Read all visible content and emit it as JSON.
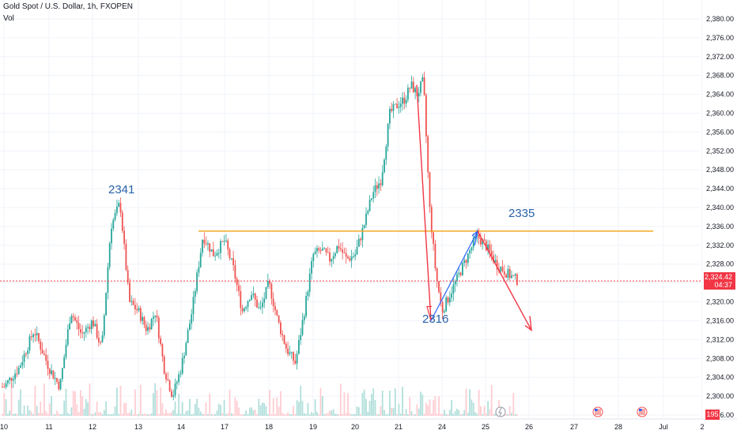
{
  "header": {
    "symbol_title": "Gold Spot / U.S. Dollar, 1h, FXOPEN",
    "volume_label": "Vol"
  },
  "price_tag": {
    "price": "2,324.42",
    "countdown": "04:37"
  },
  "volume_tag": "195",
  "annotations": {
    "high_label": "2341",
    "resistance_label": "2335",
    "low_label": "2316"
  },
  "colors": {
    "up": "#26a69a",
    "down": "#ef5350",
    "resistance": "#f5a623",
    "projection": "#f23645",
    "wave": "#2962ff",
    "annotation_text": "#2962a8"
  },
  "event_icons": [
    "flash-icon",
    "us-flag-icon",
    "us-flag-icon"
  ],
  "chart_data": {
    "type": "candlestick",
    "title": "Gold Spot / U.S. Dollar, 1h, FXOPEN",
    "ylim": [
      2296,
      2382
    ],
    "y_ticks": [
      "2,380.00",
      "2,376.00",
      "2,372.00",
      "2,368.00",
      "2,364.00",
      "2,360.00",
      "2,356.00",
      "2,352.00",
      "2,348.00",
      "2,344.00",
      "2,340.00",
      "2,336.00",
      "2,332.00",
      "2,328.00",
      "2,324.00",
      "2,320.00",
      "2,316.00",
      "2,312.00",
      "2,308.00",
      "2,304.00",
      "2,300.00",
      "2,296.00"
    ],
    "y_tick_values": [
      2380,
      2376,
      2372,
      2368,
      2364,
      2360,
      2356,
      2352,
      2348,
      2344,
      2340,
      2336,
      2332,
      2328,
      2324,
      2320,
      2316,
      2312,
      2308,
      2304,
      2300,
      2296
    ],
    "x_ticks": [
      "10",
      "11",
      "12",
      "13",
      "14",
      "17",
      "18",
      "19",
      "20",
      "21",
      "24",
      "25",
      "26",
      "27",
      "28",
      "Jul",
      "2"
    ],
    "resistance_level": 2335,
    "current_price": 2324.42,
    "price_path": [
      [
        "10",
        2302
      ],
      [
        "10",
        2306
      ],
      [
        "10",
        2314
      ],
      [
        "11",
        2306
      ],
      [
        "11",
        2302
      ],
      [
        "11",
        2318
      ],
      [
        "11",
        2313
      ],
      [
        "12",
        2316
      ],
      [
        "12",
        2310
      ],
      [
        "12",
        2336
      ],
      [
        "12",
        2341
      ],
      [
        "12",
        2320
      ],
      [
        "13",
        2318
      ],
      [
        "13",
        2314
      ],
      [
        "13",
        2318
      ],
      [
        "13",
        2306
      ],
      [
        "13",
        2300
      ],
      [
        "14",
        2306
      ],
      [
        "14",
        2318
      ],
      [
        "14",
        2334
      ],
      [
        "14",
        2330
      ],
      [
        "17",
        2333
      ],
      [
        "17",
        2327
      ],
      [
        "17",
        2318
      ],
      [
        "17",
        2322
      ],
      [
        "17",
        2318
      ],
      [
        "18",
        2324
      ],
      [
        "18",
        2316
      ],
      [
        "18",
        2310
      ],
      [
        "18",
        2307
      ],
      [
        "18",
        2318
      ],
      [
        "19",
        2330
      ],
      [
        "19",
        2331
      ],
      [
        "19",
        2329
      ],
      [
        "19",
        2332
      ],
      [
        "19",
        2329
      ],
      [
        "20",
        2330
      ],
      [
        "20",
        2336
      ],
      [
        "20",
        2343
      ],
      [
        "20",
        2346
      ],
      [
        "20",
        2360
      ],
      [
        "21",
        2362
      ],
      [
        "21",
        2363
      ],
      [
        "21",
        2366
      ],
      [
        "21",
        2364
      ],
      [
        "21",
        2367
      ],
      [
        "21",
        2340
      ],
      [
        "21",
        2326
      ],
      [
        "24",
        2318
      ],
      [
        "24",
        2322
      ],
      [
        "24",
        2326
      ],
      [
        "24",
        2330
      ],
      [
        "24",
        2334
      ],
      [
        "25",
        2332
      ],
      [
        "25",
        2328
      ],
      [
        "25",
        2326
      ],
      [
        "25",
        2324.42
      ]
    ]
  }
}
